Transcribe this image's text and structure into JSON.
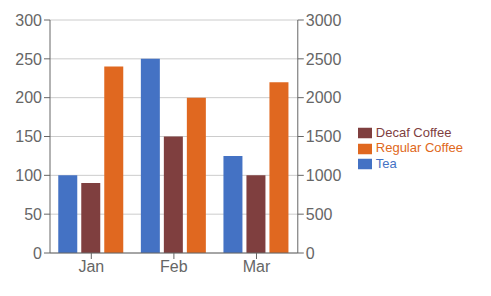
{
  "chart_data": {
    "type": "bar",
    "categories": [
      "Jan",
      "Feb",
      "Mar"
    ],
    "series": [
      {
        "name": "Tea",
        "color": "#4472C4",
        "values": [
          100,
          250,
          125
        ]
      },
      {
        "name": "Decaf Coffee",
        "color": "#7F3F3F",
        "values": [
          90,
          150,
          100
        ]
      },
      {
        "name": "Regular Coffee",
        "color": "#E06820",
        "values": [
          2400,
          2000,
          2200
        ],
        "axis": "y2"
      }
    ],
    "ylim": [
      0,
      300
    ],
    "yticks": [
      0,
      50,
      100,
      150,
      200,
      250,
      300
    ],
    "y2lim": [
      0,
      3000
    ],
    "y2ticks": [
      0,
      500,
      1000,
      1500,
      2000,
      2500,
      3000
    ],
    "grid": true,
    "legend": "right"
  }
}
